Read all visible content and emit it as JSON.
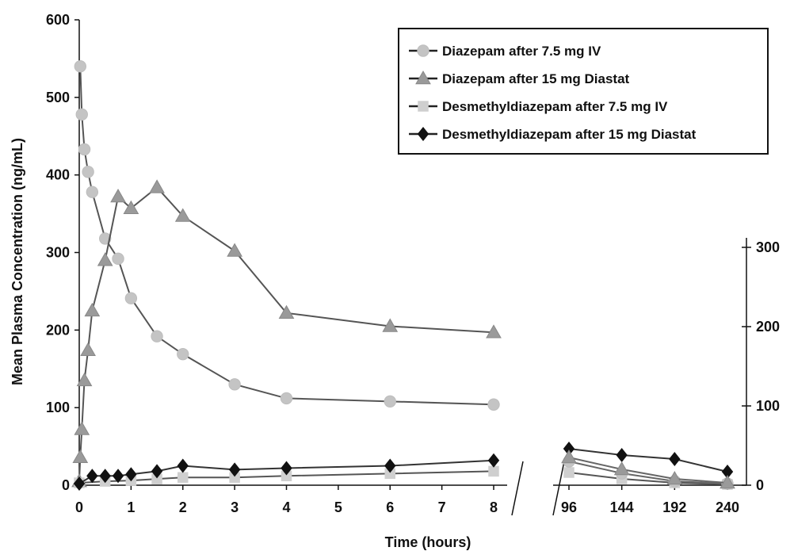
{
  "chart_data": {
    "type": "line",
    "xlabel": "Time (hours)",
    "ylabel": "Mean Plasma Concentration (ng/mL)",
    "ylim": [
      0,
      600
    ],
    "ylim_right": [
      0,
      300
    ],
    "grid": false,
    "legend_position": "top-right",
    "x_ticks_left": [
      "0",
      "1",
      "2",
      "3",
      "4",
      "5",
      "6",
      "7",
      "8"
    ],
    "x_ticks_right": [
      "96",
      "144",
      "192",
      "240"
    ],
    "y_ticks_left": [
      "0",
      "100",
      "200",
      "300",
      "400",
      "500",
      "600"
    ],
    "y_ticks_right": [
      "0",
      "100",
      "200",
      "300"
    ],
    "axis_break": "8 to 96",
    "series": [
      {
        "name": "Diazepam after 7.5 mg IV",
        "marker": "circle",
        "color": "#c4c4c4",
        "line_color": "#555555",
        "x": [
          0.02,
          0.05,
          0.1,
          0.17,
          0.25,
          0.5,
          0.75,
          1,
          1.5,
          2,
          3,
          4,
          6,
          8
        ],
        "y": [
          540,
          478,
          433,
          404,
          378,
          318,
          292,
          241,
          192,
          169,
          130,
          112,
          108,
          104
        ]
      },
      {
        "name": "Diazepam after 15 mg Diastat",
        "marker": "triangle",
        "color": "#9a9a9a",
        "line_color": "#555555",
        "x": [
          0,
          0.02,
          0.05,
          0.1,
          0.17,
          0.25,
          0.5,
          0.75,
          1,
          1.5,
          2,
          3,
          4,
          6,
          8
        ],
        "y": [
          5,
          36,
          72,
          135,
          174,
          225,
          290,
          372,
          357,
          384,
          347,
          302,
          222,
          205,
          197
        ]
      },
      {
        "name": "Desmethyldiazepam after 7.5 mg IV",
        "marker": "square",
        "color": "#cfcfcf",
        "line_color": "#555555",
        "x": [
          0,
          0.5,
          1,
          1.5,
          2,
          3,
          4,
          6,
          8,
          96,
          144,
          192,
          240
        ],
        "y": [
          3,
          5,
          6,
          8,
          10,
          10,
          12,
          15,
          18,
          16,
          8,
          3,
          1
        ]
      },
      {
        "name": "Desmethyldiazepam after 15 mg Diastat",
        "marker": "diamond",
        "color": "#111111",
        "line_color": "#333333",
        "x": [
          0,
          0.25,
          0.5,
          0.75,
          1,
          1.5,
          2,
          3,
          4,
          6,
          8,
          96,
          144,
          192,
          240
        ],
        "y": [
          2,
          12,
          12,
          12,
          14,
          18,
          25,
          20,
          22,
          25,
          32,
          46,
          38,
          33,
          17
        ]
      }
    ],
    "extra_lines_late": [
      {
        "marker": "circle",
        "color": "#c4c4c4",
        "x": [
          96,
          144,
          192,
          240
        ],
        "y": [
          30,
          15,
          5,
          2
        ]
      },
      {
        "marker": "triangle",
        "color": "#9a9a9a",
        "x": [
          96,
          144,
          192,
          240
        ],
        "y": [
          35,
          20,
          8,
          3
        ]
      }
    ]
  }
}
